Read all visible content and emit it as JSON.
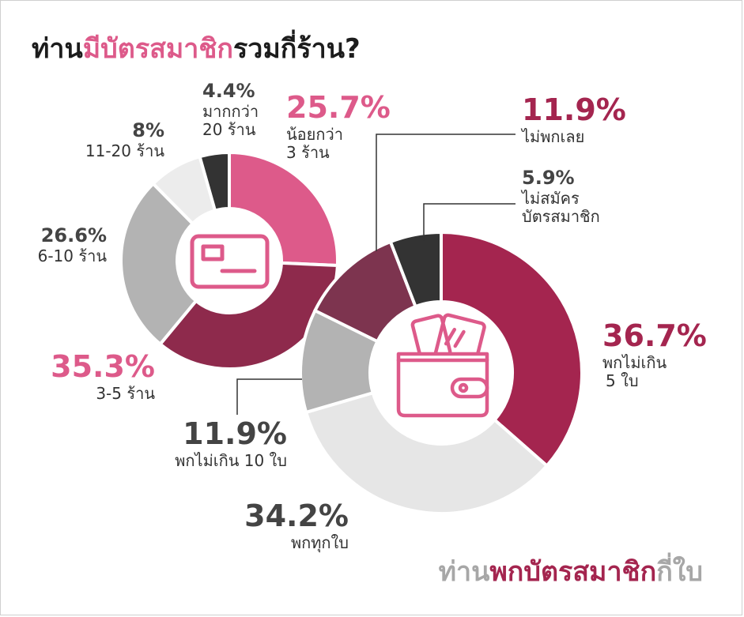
{
  "title": {
    "part1": "ท่าน",
    "part2": "มีบัตรสมาชิก",
    "part3": "รวมกี่ร้าน?"
  },
  "subtitle": {
    "part1": "ท่าน",
    "part2": "พกบัตรสมาชิก",
    "part3": "กี่ใบ"
  },
  "colors": {
    "pink": "#dd5a8a",
    "wine": "#a4254f",
    "dark_wine": "#8e2a4c",
    "gray": "#b3b3b3",
    "light_gray": "#e6e6e6",
    "charcoal": "#333333"
  },
  "icons": [
    "membership-card-icon",
    "wallet-with-cards-icon"
  ],
  "chart_data": [
    {
      "type": "pie",
      "title": "ท่านมีบัตรสมาชิกรวมกี่ร้าน?",
      "slices": [
        {
          "label": "น้อยกว่า 3 ร้าน",
          "value": 25.7,
          "pct_text": "25.7%",
          "color": "#dd5a8a"
        },
        {
          "label": "3-5 ร้าน",
          "value": 35.3,
          "pct_text": "35.3%",
          "color": "#8e2a4c"
        },
        {
          "label": "6-10 ร้าน",
          "value": 26.6,
          "pct_text": "26.6%",
          "color": "#b3b3b3"
        },
        {
          "label": "11-20 ร้าน",
          "value": 8,
          "pct_text": "8%",
          "color": "#ececec"
        },
        {
          "label": "มากกว่า 20 ร้าน",
          "value": 4.4,
          "pct_text": "4.4%",
          "color": "#333333"
        }
      ]
    },
    {
      "type": "pie",
      "title": "ท่านพกบัตรสมาชิกกี่ใบ",
      "slices": [
        {
          "label": "พกไม่เกิน 5 ใบ",
          "value": 36.7,
          "pct_text": "36.7%",
          "color": "#a4254f"
        },
        {
          "label": "พกทุกใบ",
          "value": 34.2,
          "pct_text": "34.2%",
          "color": "#e6e6e6"
        },
        {
          "label": "พกไม่เกิน 10 ใบ",
          "value": 11.9,
          "pct_text": "11.9%",
          "color": "#b3b3b3"
        },
        {
          "label": "ไม่พกเลย",
          "value": 11.9,
          "pct_text": "11.9%",
          "color": "#7d344f"
        },
        {
          "label": "ไม่สมัครบัตรสมาชิก",
          "value": 5.9,
          "pct_text": "5.9%",
          "color": "#333333"
        }
      ]
    }
  ],
  "labels": {
    "c1_less3": {
      "pct": "25.7%",
      "l1": "น้อยกว่า",
      "l2": "3 ร้าน"
    },
    "c1_3to5": {
      "pct": "35.3%",
      "l1": "3-5 ร้าน"
    },
    "c1_6to10": {
      "pct": "26.6%",
      "l1": "6-10 ร้าน"
    },
    "c1_11to20": {
      "pct": "8%",
      "l1": "11-20 ร้าน"
    },
    "c1_over20": {
      "pct": "4.4%",
      "l1": "มากกว่า",
      "l2": "20 ร้าน"
    },
    "c2_max5": {
      "pct": "36.7%",
      "l1": "พกไม่เกิน",
      "l2": "5 ใบ"
    },
    "c2_all": {
      "pct": "34.2%",
      "l1": "พกทุกใบ"
    },
    "c2_max10": {
      "pct": "11.9%",
      "l1": "พกไม่เกิน 10 ใบ"
    },
    "c2_none": {
      "pct": "11.9%",
      "l1": "ไม่พกเลย"
    },
    "c2_noreg": {
      "pct": "5.9%",
      "l1": "ไม่สมัคร",
      "l2": "บัตรสมาชิก"
    }
  }
}
